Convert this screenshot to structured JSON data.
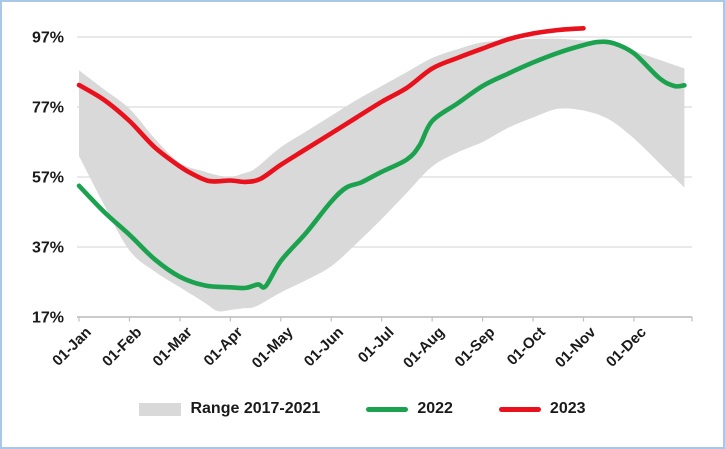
{
  "chart_data": {
    "type": "line",
    "title": "",
    "xlabel": "",
    "ylabel": "",
    "grid": "horizontal",
    "legend_position": "bottom",
    "x_unit": "months since 01-Jan (0 = 01-Jan, 12 = 31-Dec)",
    "axes": {
      "ylim": [
        17,
        103
      ],
      "xlim": [
        0,
        12.15
      ],
      "y_ticks": [
        {
          "value": 17,
          "label": "17%"
        },
        {
          "value": 37,
          "label": "37%"
        },
        {
          "value": 57,
          "label": "57%"
        },
        {
          "value": 77,
          "label": "77%"
        },
        {
          "value": 97,
          "label": "97%"
        }
      ],
      "x_ticks": [
        {
          "month": 0,
          "label": "01-Jan"
        },
        {
          "month": 1,
          "label": "01-Feb"
        },
        {
          "month": 2,
          "label": "01-Mar"
        },
        {
          "month": 3,
          "label": "01-Apr"
        },
        {
          "month": 4,
          "label": "01-May"
        },
        {
          "month": 5,
          "label": "01-Jun"
        },
        {
          "month": 6,
          "label": "01-Jul"
        },
        {
          "month": 7,
          "label": "01-Aug"
        },
        {
          "month": 8,
          "label": "01-Sep"
        },
        {
          "month": 9,
          "label": "01-Oct"
        },
        {
          "month": 10,
          "label": "01-Nov"
        },
        {
          "month": 11,
          "label": "01-Dec"
        }
      ]
    },
    "series": [
      {
        "name": "Range 2017-2021",
        "kind": "band",
        "color": "#D9D9D9",
        "x": [
          0,
          0.5,
          1,
          1.5,
          2,
          2.5,
          2.75,
          3,
          3.25,
          3.5,
          4,
          4.5,
          5,
          5.5,
          6,
          6.5,
          7,
          7.5,
          8,
          8.5,
          9,
          9.5,
          10,
          10.5,
          11,
          11.5,
          12
        ],
        "top": [
          87.5,
          82,
          76.5,
          68,
          61,
          58.5,
          57.5,
          57,
          58,
          59.5,
          65.5,
          70,
          74.5,
          79,
          83,
          87,
          91,
          93.5,
          95.5,
          96,
          96.5,
          96.5,
          96,
          95.5,
          93,
          90.5,
          88
        ],
        "bottom": [
          63,
          49,
          36,
          30,
          25.5,
          21,
          18.7,
          19,
          19.5,
          20,
          24,
          27.5,
          31.5,
          38,
          45,
          52.5,
          60,
          64,
          67,
          71,
          74,
          76.5,
          76,
          73.5,
          68,
          61,
          54
        ]
      },
      {
        "name": "2022",
        "kind": "line",
        "color": "#1CA24F",
        "x": [
          0,
          0.5,
          1,
          1.5,
          2,
          2.5,
          3,
          3.3,
          3.55,
          3.7,
          4,
          4.5,
          5,
          5.3,
          5.6,
          6,
          6.5,
          6.75,
          7,
          7.5,
          8,
          8.5,
          9,
          9.5,
          10,
          10.3,
          10.6,
          11,
          11.5,
          11.8,
          12
        ],
        "y": [
          54.5,
          47,
          40.5,
          33.5,
          28.5,
          26,
          25.5,
          25.3,
          26.3,
          25.8,
          33,
          41,
          50,
          54,
          55.5,
          58.5,
          62,
          66,
          73,
          78,
          83,
          86.5,
          89.7,
          92.5,
          94.7,
          95.6,
          95.2,
          92.3,
          85.3,
          83,
          83.2
        ]
      },
      {
        "name": "2023",
        "kind": "line",
        "color": "#E8111C",
        "x": [
          0,
          0.5,
          1,
          1.5,
          2,
          2.3,
          2.6,
          3,
          3.3,
          3.6,
          4,
          4.5,
          5,
          5.5,
          6,
          6.5,
          7,
          7.5,
          8,
          8.5,
          9,
          9.5,
          10
        ],
        "y": [
          83.3,
          79,
          73,
          65.5,
          60,
          57.5,
          55.8,
          56,
          55.6,
          56.5,
          60.5,
          65,
          69.5,
          74,
          78.5,
          82.5,
          88,
          91,
          93.7,
          96.3,
          98,
          99,
          99.5
        ]
      }
    ],
    "legend_entries": [
      "Range 2017-2021",
      "2022",
      "2023"
    ]
  },
  "styles": {
    "background": "#FFFFFF",
    "frame_border": "#A9C7E7",
    "grid_color": "#DCDCDC",
    "axis_color": "#BFBFBF",
    "text_color": "#1A1A1A",
    "band_color": "#D9D9D9",
    "green": "#1CA24F",
    "red": "#E8111C"
  }
}
